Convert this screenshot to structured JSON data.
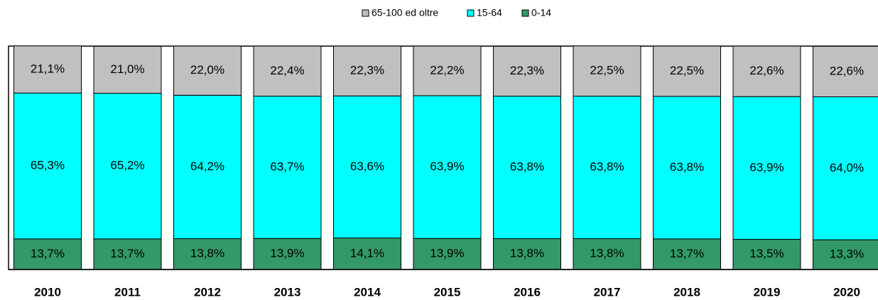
{
  "chart_data": {
    "type": "stacked_bar",
    "categories": [
      "2010",
      "2011",
      "2012",
      "2013",
      "2014",
      "2015",
      "2016",
      "2017",
      "2018",
      "2019",
      "2020"
    ],
    "series": [
      {
        "name": "65-100 ed oltre",
        "color": "#c0c0c0",
        "values": [
          21.1,
          21.0,
          22.0,
          22.4,
          22.3,
          22.2,
          22.3,
          22.5,
          22.5,
          22.6,
          22.6
        ],
        "value_labels": [
          "21,1%",
          "21,0%",
          "22,0%",
          "22,4%",
          "22,3%",
          "22,2%",
          "22,3%",
          "22,5%",
          "22,5%",
          "22,6%",
          "22,6%"
        ]
      },
      {
        "name": "15-64",
        "color": "#00ffff",
        "values": [
          65.3,
          65.2,
          64.2,
          63.7,
          63.6,
          63.9,
          63.8,
          63.8,
          63.8,
          63.9,
          64.0
        ],
        "value_labels": [
          "65,3%",
          "65,2%",
          "64,2%",
          "63,7%",
          "63,6%",
          "63,9%",
          "63,8%",
          "63,8%",
          "63,8%",
          "63,9%",
          "64,0%"
        ]
      },
      {
        "name": "0-14",
        "color": "#339966",
        "values": [
          13.7,
          13.7,
          13.8,
          13.9,
          14.1,
          13.9,
          13.8,
          13.8,
          13.7,
          13.5,
          13.3
        ],
        "value_labels": [
          "13,7%",
          "13,7%",
          "13,8%",
          "13,9%",
          "14,1%",
          "13,9%",
          "13,8%",
          "13,8%",
          "13,7%",
          "13,5%",
          "13,3%"
        ]
      }
    ],
    "ylim": [
      0,
      100
    ],
    "legend": "top"
  }
}
